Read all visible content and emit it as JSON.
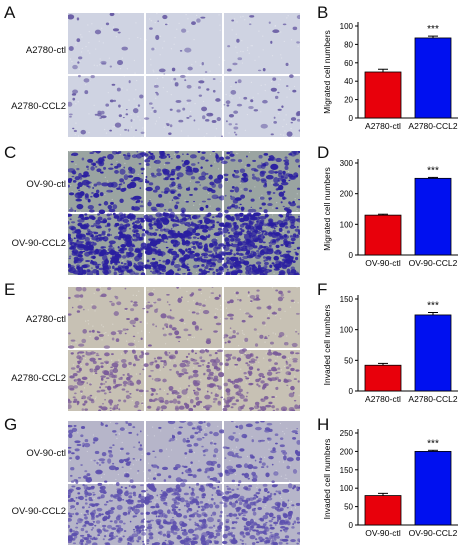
{
  "panels": {
    "letters": [
      "A",
      "B",
      "C",
      "D",
      "E",
      "F",
      "G",
      "H"
    ]
  },
  "micrographs": [
    {
      "rows": [
        "A2780-ctl",
        "A2780-CCL2"
      ],
      "bg": "#cfd3e2",
      "cell": "#6a5ea5",
      "density": [
        18,
        40
      ],
      "stain": "light"
    },
    {
      "rows": [
        "OV-90-ctl",
        "OV-90-CCL2"
      ],
      "bg": "#9aa4a1",
      "cell": "#2a1fa0",
      "density": [
        140,
        380
      ],
      "stain": "heavy"
    },
    {
      "rows": [
        "A2780-ctl",
        "A2780-CCL2"
      ],
      "bg": "#c7c1b4",
      "cell": "#7a5b9a",
      "density": [
        60,
        160
      ],
      "stain": "medium"
    },
    {
      "rows": [
        "OV-90-ctl",
        "OV-90-CCL2"
      ],
      "bg": "#b6b5c9",
      "cell": "#5c4fae",
      "density": [
        90,
        260
      ],
      "stain": "medium"
    }
  ],
  "chart_data": [
    {
      "type": "bar",
      "ylabel": "Migrated cell numbers",
      "categories": [
        "A2780-ctl",
        "A2780-CCL2"
      ],
      "values": [
        50,
        87
      ],
      "errors": [
        3,
        2
      ],
      "colors": [
        "#e8000b",
        "#0010f0"
      ],
      "ylim": [
        0,
        100
      ],
      "yticks": [
        0,
        20,
        40,
        60,
        80,
        100
      ],
      "annotation": "***"
    },
    {
      "type": "bar",
      "ylabel": "Migrated cell numbers",
      "categories": [
        "OV-90-ctl",
        "OV-90-CCL2"
      ],
      "values": [
        130,
        250
      ],
      "errors": [
        3,
        3
      ],
      "colors": [
        "#e8000b",
        "#0010f0"
      ],
      "ylim": [
        0,
        300
      ],
      "yticks": [
        0,
        100,
        200,
        300
      ],
      "annotation": "***"
    },
    {
      "type": "bar",
      "ylabel": "Invaded cell numbers",
      "categories": [
        "A2780-ctl",
        "A2780-CCL2"
      ],
      "values": [
        42,
        124
      ],
      "errors": [
        3,
        4
      ],
      "colors": [
        "#e8000b",
        "#0010f0"
      ],
      "ylim": [
        0,
        150
      ],
      "yticks": [
        0,
        50,
        100,
        150
      ],
      "annotation": "***"
    },
    {
      "type": "bar",
      "ylabel": "Invaded cell numbers",
      "categories": [
        "OV-90-ctl",
        "OV-90-CCL2"
      ],
      "values": [
        80,
        200
      ],
      "errors": [
        6,
        3
      ],
      "colors": [
        "#e8000b",
        "#0010f0"
      ],
      "ylim": [
        0,
        250
      ],
      "yticks": [
        0,
        50,
        100,
        150,
        200,
        250
      ],
      "annotation": "***"
    }
  ]
}
